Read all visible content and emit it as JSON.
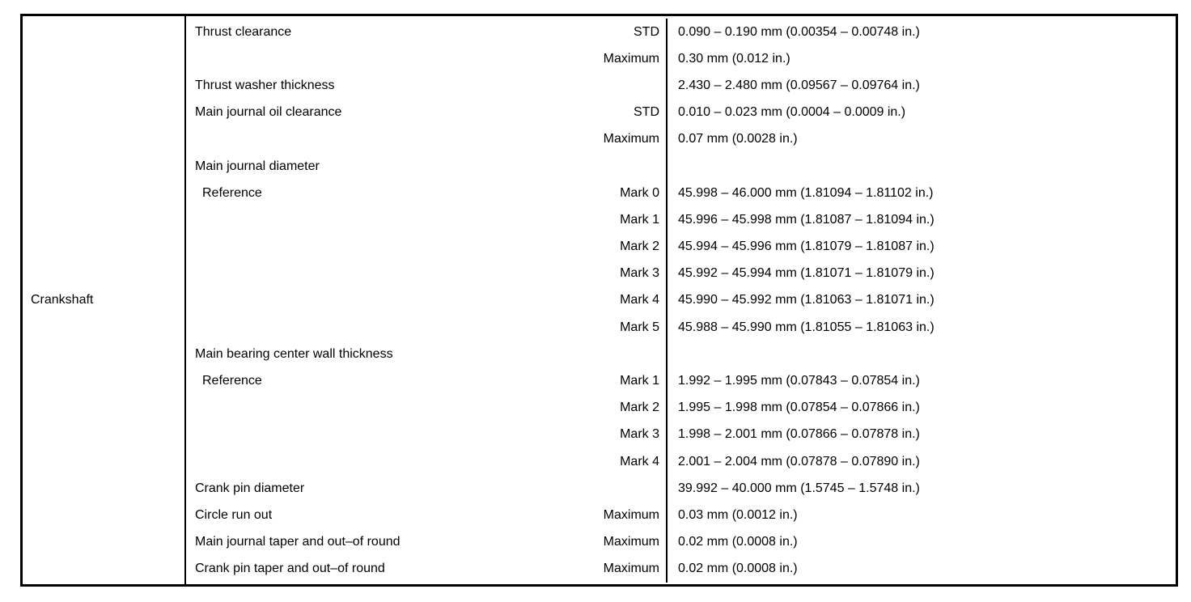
{
  "table": {
    "component": "Crankshaft",
    "rows": [
      {
        "label": "Thrust clearance",
        "indent": false,
        "qualifier": "STD",
        "value": "0.090 – 0.190 mm (0.00354 – 0.00748 in.)"
      },
      {
        "label": "",
        "indent": false,
        "qualifier": "Maximum",
        "value": "0.30 mm (0.012 in.)"
      },
      {
        "label": "Thrust washer thickness",
        "indent": false,
        "qualifier": "",
        "value": "2.430 – 2.480 mm (0.09567 – 0.09764 in.)"
      },
      {
        "label": "Main journal oil clearance",
        "indent": false,
        "qualifier": "STD",
        "value": "0.010 – 0.023 mm (0.0004 – 0.0009 in.)"
      },
      {
        "label": "",
        "indent": false,
        "qualifier": "Maximum",
        "value": "0.07 mm (0.0028 in.)"
      },
      {
        "label": "Main journal diameter",
        "indent": false,
        "qualifier": "",
        "value": ""
      },
      {
        "label": "Reference",
        "indent": true,
        "qualifier": "Mark 0",
        "value": "45.998 – 46.000 mm (1.81094 – 1.81102 in.)"
      },
      {
        "label": "",
        "indent": false,
        "qualifier": "Mark 1",
        "value": "45.996 – 45.998 mm (1.81087 – 1.81094 in.)"
      },
      {
        "label": "",
        "indent": false,
        "qualifier": "Mark 2",
        "value": "45.994 – 45.996 mm (1.81079 – 1.81087 in.)"
      },
      {
        "label": "",
        "indent": false,
        "qualifier": "Mark 3",
        "value": "45.992 – 45.994 mm (1.81071 – 1.81079 in.)"
      },
      {
        "label": "",
        "indent": false,
        "qualifier": "Mark 4",
        "value": "45.990 – 45.992 mm (1.81063 – 1.81071 in.)"
      },
      {
        "label": "",
        "indent": false,
        "qualifier": "Mark 5",
        "value": "45.988 – 45.990 mm (1.81055 – 1.81063 in.)"
      },
      {
        "label": "Main bearing center wall thickness",
        "indent": false,
        "qualifier": "",
        "value": ""
      },
      {
        "label": "Reference",
        "indent": true,
        "qualifier": "Mark 1",
        "value": "1.992 – 1.995 mm (0.07843 – 0.07854 in.)"
      },
      {
        "label": "",
        "indent": false,
        "qualifier": "Mark 2",
        "value": "1.995 – 1.998 mm (0.07854 – 0.07866 in.)"
      },
      {
        "label": "",
        "indent": false,
        "qualifier": "Mark 3",
        "value": "1.998 – 2.001 mm (0.07866 – 0.07878 in.)"
      },
      {
        "label": "",
        "indent": false,
        "qualifier": "Mark 4",
        "value": "2.001 – 2.004 mm (0.07878 – 0.07890 in.)"
      },
      {
        "label": "Crank pin diameter",
        "indent": false,
        "qualifier": "",
        "value": "39.992 – 40.000 mm (1.5745 – 1.5748 in.)"
      },
      {
        "label": "Circle run out",
        "indent": false,
        "qualifier": "Maximum",
        "value": "0.03 mm (0.0012 in.)"
      },
      {
        "label": "Main journal taper and out–of round",
        "indent": false,
        "qualifier": "Maximum",
        "value": "0.02 mm (0.0008 in.)"
      },
      {
        "label": "Crank pin taper and out–of round",
        "indent": false,
        "qualifier": "Maximum",
        "value": "0.02 mm (0.0008 in.)"
      }
    ]
  }
}
